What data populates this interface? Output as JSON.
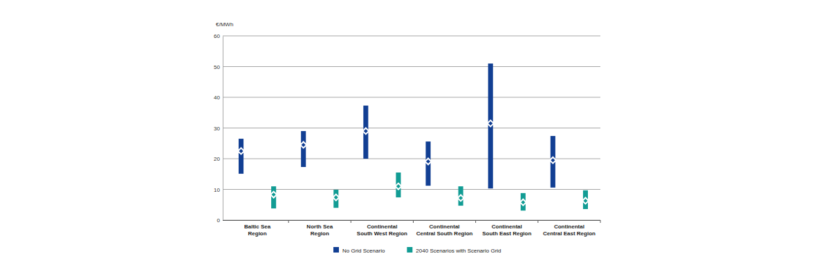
{
  "chart_data": {
    "type": "floating_bar",
    "y_label": "€/MWh",
    "categories": [
      "Baltic Sea\nRegion",
      "North Sea\nRegion",
      "Continental\nSouth West Region",
      "Continental\nCentral South Region",
      "Continental\nSouth East Region",
      "Continental\nCentral East Region"
    ],
    "series": [
      {
        "name": "No Grid Scenario",
        "color": "#123f93",
        "marker": "diamond",
        "low": [
          15.1,
          17.3,
          20.0,
          11.2,
          10.3,
          10.6
        ],
        "high": [
          26.5,
          29.0,
          37.3,
          25.6,
          51.0,
          27.4
        ],
        "values": [
          22.5,
          24.5,
          29.0,
          19.1,
          31.5,
          19.5
        ]
      },
      {
        "name": "2040 Scenarios with Scenario Grid",
        "color": "#129c94",
        "marker": "diamond",
        "low": [
          3.8,
          4.0,
          7.4,
          4.7,
          3.1,
          3.6
        ],
        "high": [
          11.0,
          9.9,
          15.5,
          11.0,
          8.8,
          9.7
        ],
        "values": [
          8.3,
          7.4,
          11.0,
          7.2,
          5.8,
          6.3
        ]
      }
    ],
    "ylim": [
      0,
      60
    ],
    "yticks": [
      0,
      10,
      20,
      30,
      40,
      50,
      60
    ],
    "grid": true,
    "legend": "bottom"
  }
}
